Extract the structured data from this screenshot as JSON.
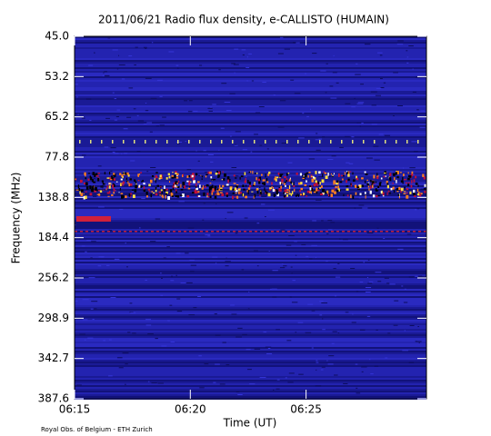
{
  "chart_data": {
    "type": "spectrogram",
    "title": "2011/06/21  Radio flux density, e-CALLISTO (HUMAIN)",
    "xlabel": "Time (UT)",
    "ylabel": "Frequency (MHz)",
    "credit": "Royal Obs. of Belgium - ETH Zurich",
    "xlim": [
      375,
      390.2
    ],
    "xticks": [
      {
        "value": 375,
        "label": "06:15"
      },
      {
        "value": 380,
        "label": "06:20"
      },
      {
        "value": 385,
        "label": "06:25"
      }
    ],
    "y_labels": [
      "45.0",
      "53.2",
      "65.2",
      "77.8",
      "138.8",
      "184.4",
      "256.2",
      "298.9",
      "342.7",
      "387.6"
    ]
  }
}
